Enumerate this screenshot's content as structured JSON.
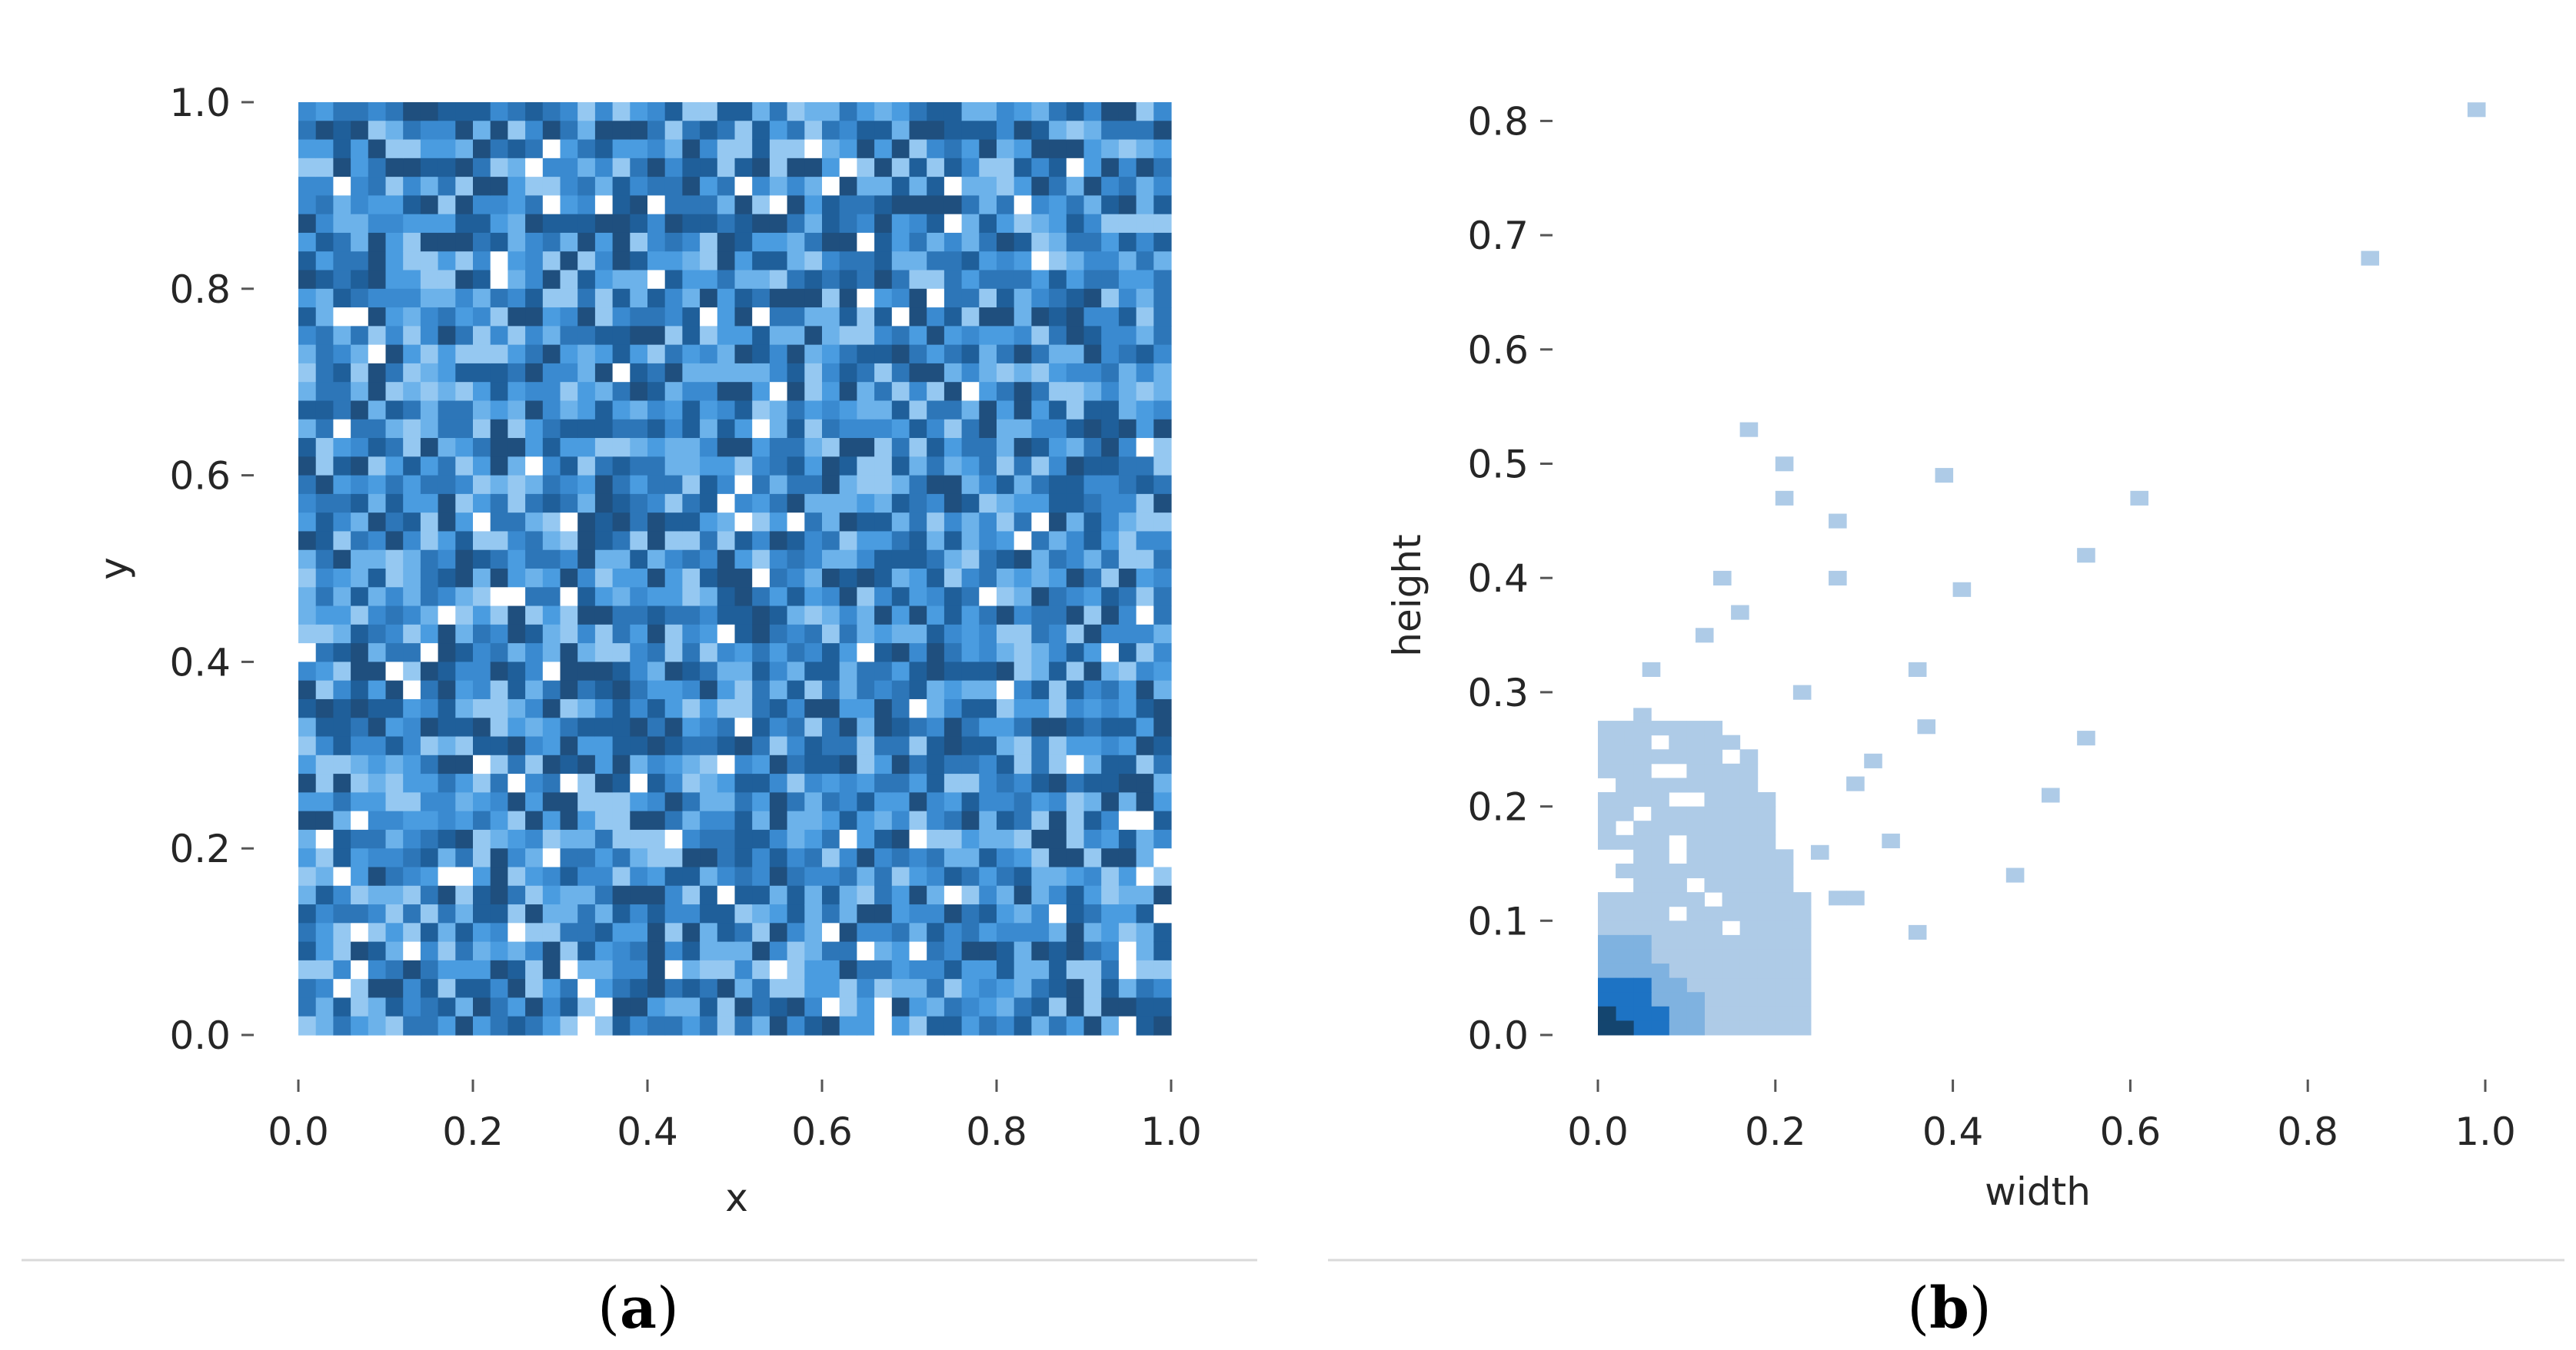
{
  "colors": {
    "heatmap_palette": [
      "#1f4f7e",
      "#1f5f9a",
      "#2d76b8",
      "#3a8ad0",
      "#4a9ce0",
      "#6cb2ea",
      "#95c8f1",
      "#ffffff"
    ],
    "hist_light": "#aecbe7",
    "hist_mid": "#7fb2e0",
    "hist_dark": "#1d73c4",
    "hist_darkest": "#14456f"
  },
  "captions": {
    "a": {
      "open": "(",
      "letter": "a",
      "close": ")"
    },
    "b": {
      "open": "(",
      "letter": "b",
      "close": ")"
    }
  },
  "chart_data": [
    {
      "type": "heatmap",
      "title": "",
      "xlabel": "x",
      "ylabel": "y",
      "xlim": [
        0.0,
        1.0
      ],
      "ylim": [
        0.0,
        1.0
      ],
      "xticks": [
        "0.0",
        "0.2",
        "0.4",
        "0.6",
        "0.8",
        "1.0"
      ],
      "yticks": [
        "0.0",
        "0.2",
        "0.4",
        "0.6",
        "0.8",
        "1.0"
      ],
      "bins": [
        50,
        50
      ],
      "distribution": "uniform random density over [0,1]x[0,1] rendered in blue shades with scattered white (lowest) cells",
      "grid": false,
      "legend": "none"
    },
    {
      "type": "heatmap",
      "title": "",
      "xlabel": "width",
      "ylabel": "height",
      "xlim": [
        0.0,
        1.0
      ],
      "ylim": [
        0.0,
        0.8
      ],
      "xticks": [
        "0.0",
        "0.2",
        "0.4",
        "0.6",
        "0.8",
        "1.0"
      ],
      "yticks": [
        "0.0",
        "0.1",
        "0.2",
        "0.3",
        "0.4",
        "0.5",
        "0.6",
        "0.7",
        "0.8"
      ],
      "bin_size": [
        0.02,
        0.0125
      ],
      "dense_region": {
        "width": [
          0.0,
          0.15
        ],
        "height": [
          0.0,
          0.27
        ]
      },
      "densest_region": {
        "width": [
          0.0,
          0.08
        ],
        "height": [
          0.0,
          0.06
        ]
      },
      "outlier_points": [
        {
          "x": 0.99,
          "y": 0.81
        },
        {
          "x": 0.87,
          "y": 0.68
        },
        {
          "x": 0.61,
          "y": 0.47
        },
        {
          "x": 0.55,
          "y": 0.42
        },
        {
          "x": 0.55,
          "y": 0.26
        },
        {
          "x": 0.51,
          "y": 0.21
        },
        {
          "x": 0.47,
          "y": 0.14
        },
        {
          "x": 0.41,
          "y": 0.39
        },
        {
          "x": 0.39,
          "y": 0.49
        },
        {
          "x": 0.37,
          "y": 0.27
        },
        {
          "x": 0.36,
          "y": 0.32
        },
        {
          "x": 0.36,
          "y": 0.09
        },
        {
          "x": 0.33,
          "y": 0.17
        },
        {
          "x": 0.31,
          "y": 0.24
        },
        {
          "x": 0.29,
          "y": 0.22
        },
        {
          "x": 0.27,
          "y": 0.45
        },
        {
          "x": 0.27,
          "y": 0.4
        },
        {
          "x": 0.23,
          "y": 0.3
        },
        {
          "x": 0.21,
          "y": 0.5
        },
        {
          "x": 0.21,
          "y": 0.47
        },
        {
          "x": 0.17,
          "y": 0.53
        },
        {
          "x": 0.16,
          "y": 0.37
        },
        {
          "x": 0.14,
          "y": 0.4
        },
        {
          "x": 0.12,
          "y": 0.35
        },
        {
          "x": 0.06,
          "y": 0.32
        },
        {
          "x": 0.05,
          "y": 0.28
        },
        {
          "x": 0.04,
          "y": 0.26
        },
        {
          "x": 0.25,
          "y": 0.16
        },
        {
          "x": 0.27,
          "y": 0.12
        },
        {
          "x": 0.29,
          "y": 0.12
        },
        {
          "x": 0.23,
          "y": 0.1
        }
      ],
      "grid": false,
      "legend": "none"
    }
  ]
}
